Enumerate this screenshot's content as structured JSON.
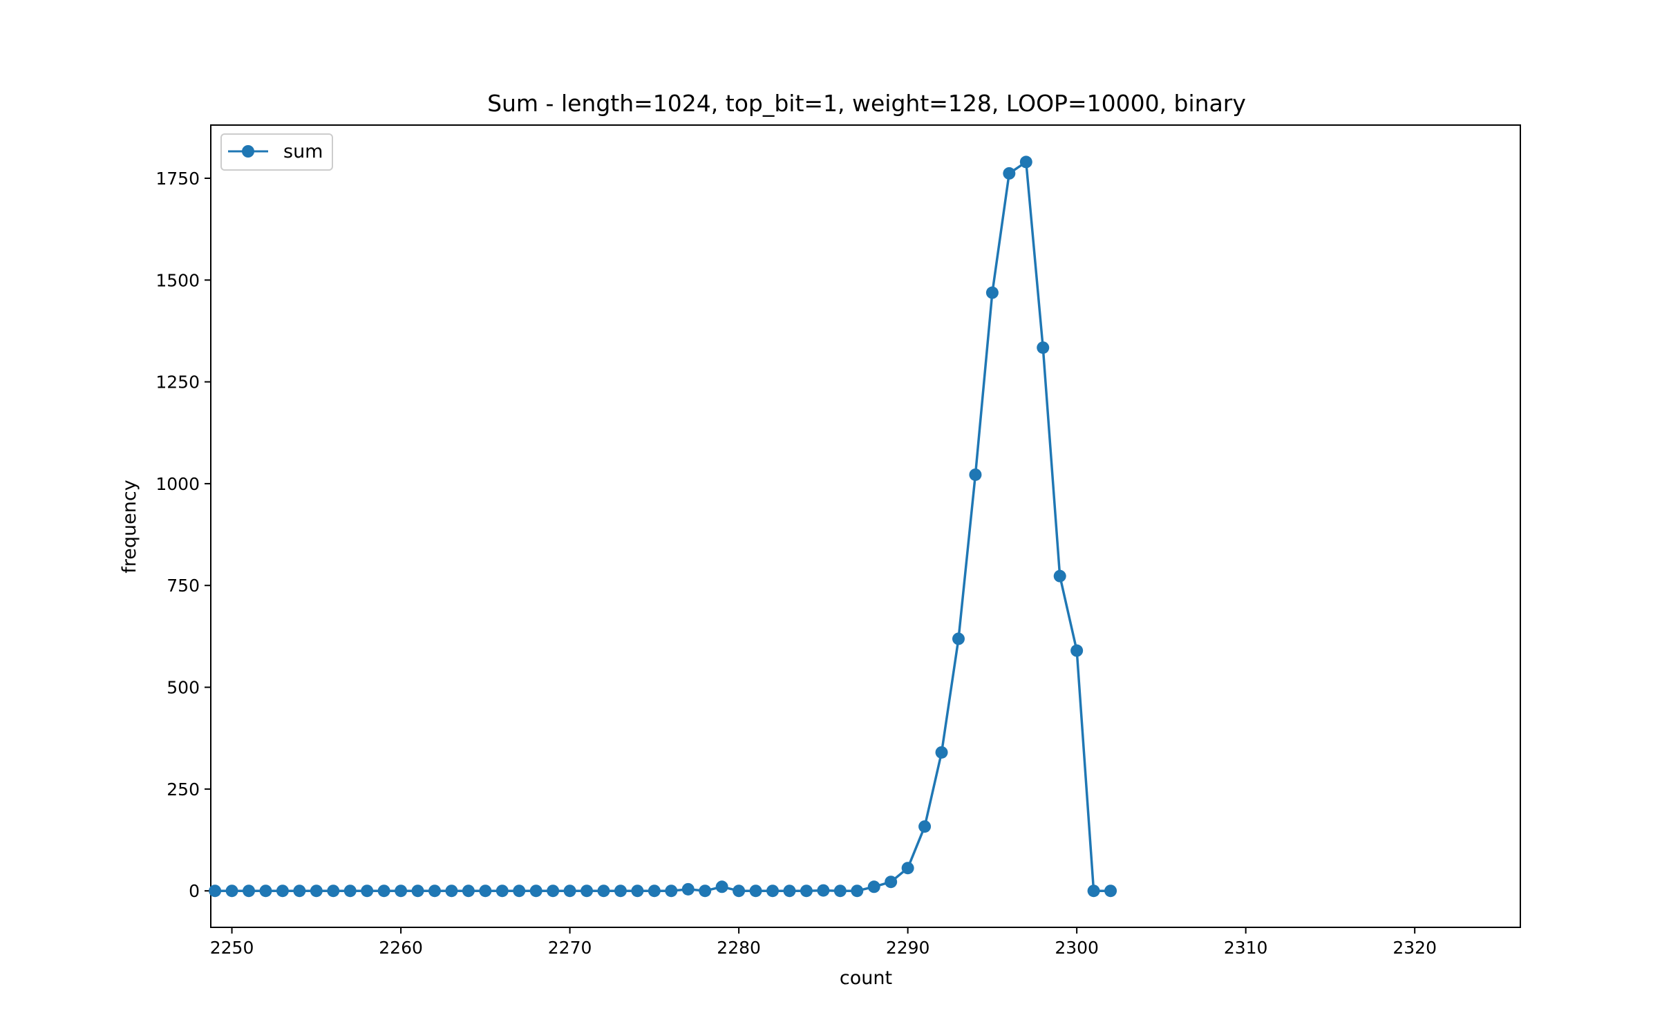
{
  "chart_data": {
    "type": "line",
    "title": "Sum - length=1024, top_bit=1, weight=128, LOOP=10000, binary",
    "xlabel": "count",
    "ylabel": "frequency",
    "xlim": [
      2248.75,
      2326.25
    ],
    "ylim": [
      -89.6,
      1880.6
    ],
    "xticks": [
      2250,
      2260,
      2270,
      2280,
      2290,
      2300,
      2310,
      2320
    ],
    "yticks": [
      0,
      250,
      500,
      750,
      1000,
      1250,
      1500,
      1750
    ],
    "grid": false,
    "legend_position": "top-left",
    "series": [
      {
        "name": "sum",
        "color": "#1f77b4",
        "marker": "circle",
        "x": [
          2249,
          2250,
          2251,
          2252,
          2253,
          2254,
          2255,
          2256,
          2257,
          2258,
          2259,
          2260,
          2261,
          2262,
          2263,
          2264,
          2265,
          2266,
          2267,
          2268,
          2269,
          2270,
          2271,
          2272,
          2273,
          2274,
          2275,
          2276,
          2277,
          2278,
          2279,
          2280,
          2281,
          2282,
          2283,
          2284,
          2285,
          2286,
          2287,
          2288,
          2289,
          2290,
          2291,
          2292,
          2293,
          2294,
          2295,
          2296,
          2297,
          2298,
          2299,
          2300,
          2301,
          2302
        ],
        "y": [
          0,
          0,
          0,
          0,
          0,
          0,
          0,
          0,
          0,
          0,
          0,
          0,
          0,
          0,
          0,
          0,
          0,
          0,
          0,
          0,
          0,
          0,
          0,
          0,
          0,
          0,
          0,
          0,
          4,
          0,
          10,
          0,
          0,
          0,
          0,
          0,
          1,
          0,
          0,
          10,
          22,
          56,
          158,
          340,
          619,
          1022,
          1469,
          1762,
          1790,
          1334,
          773,
          590,
          0,
          0
        ]
      }
    ]
  }
}
